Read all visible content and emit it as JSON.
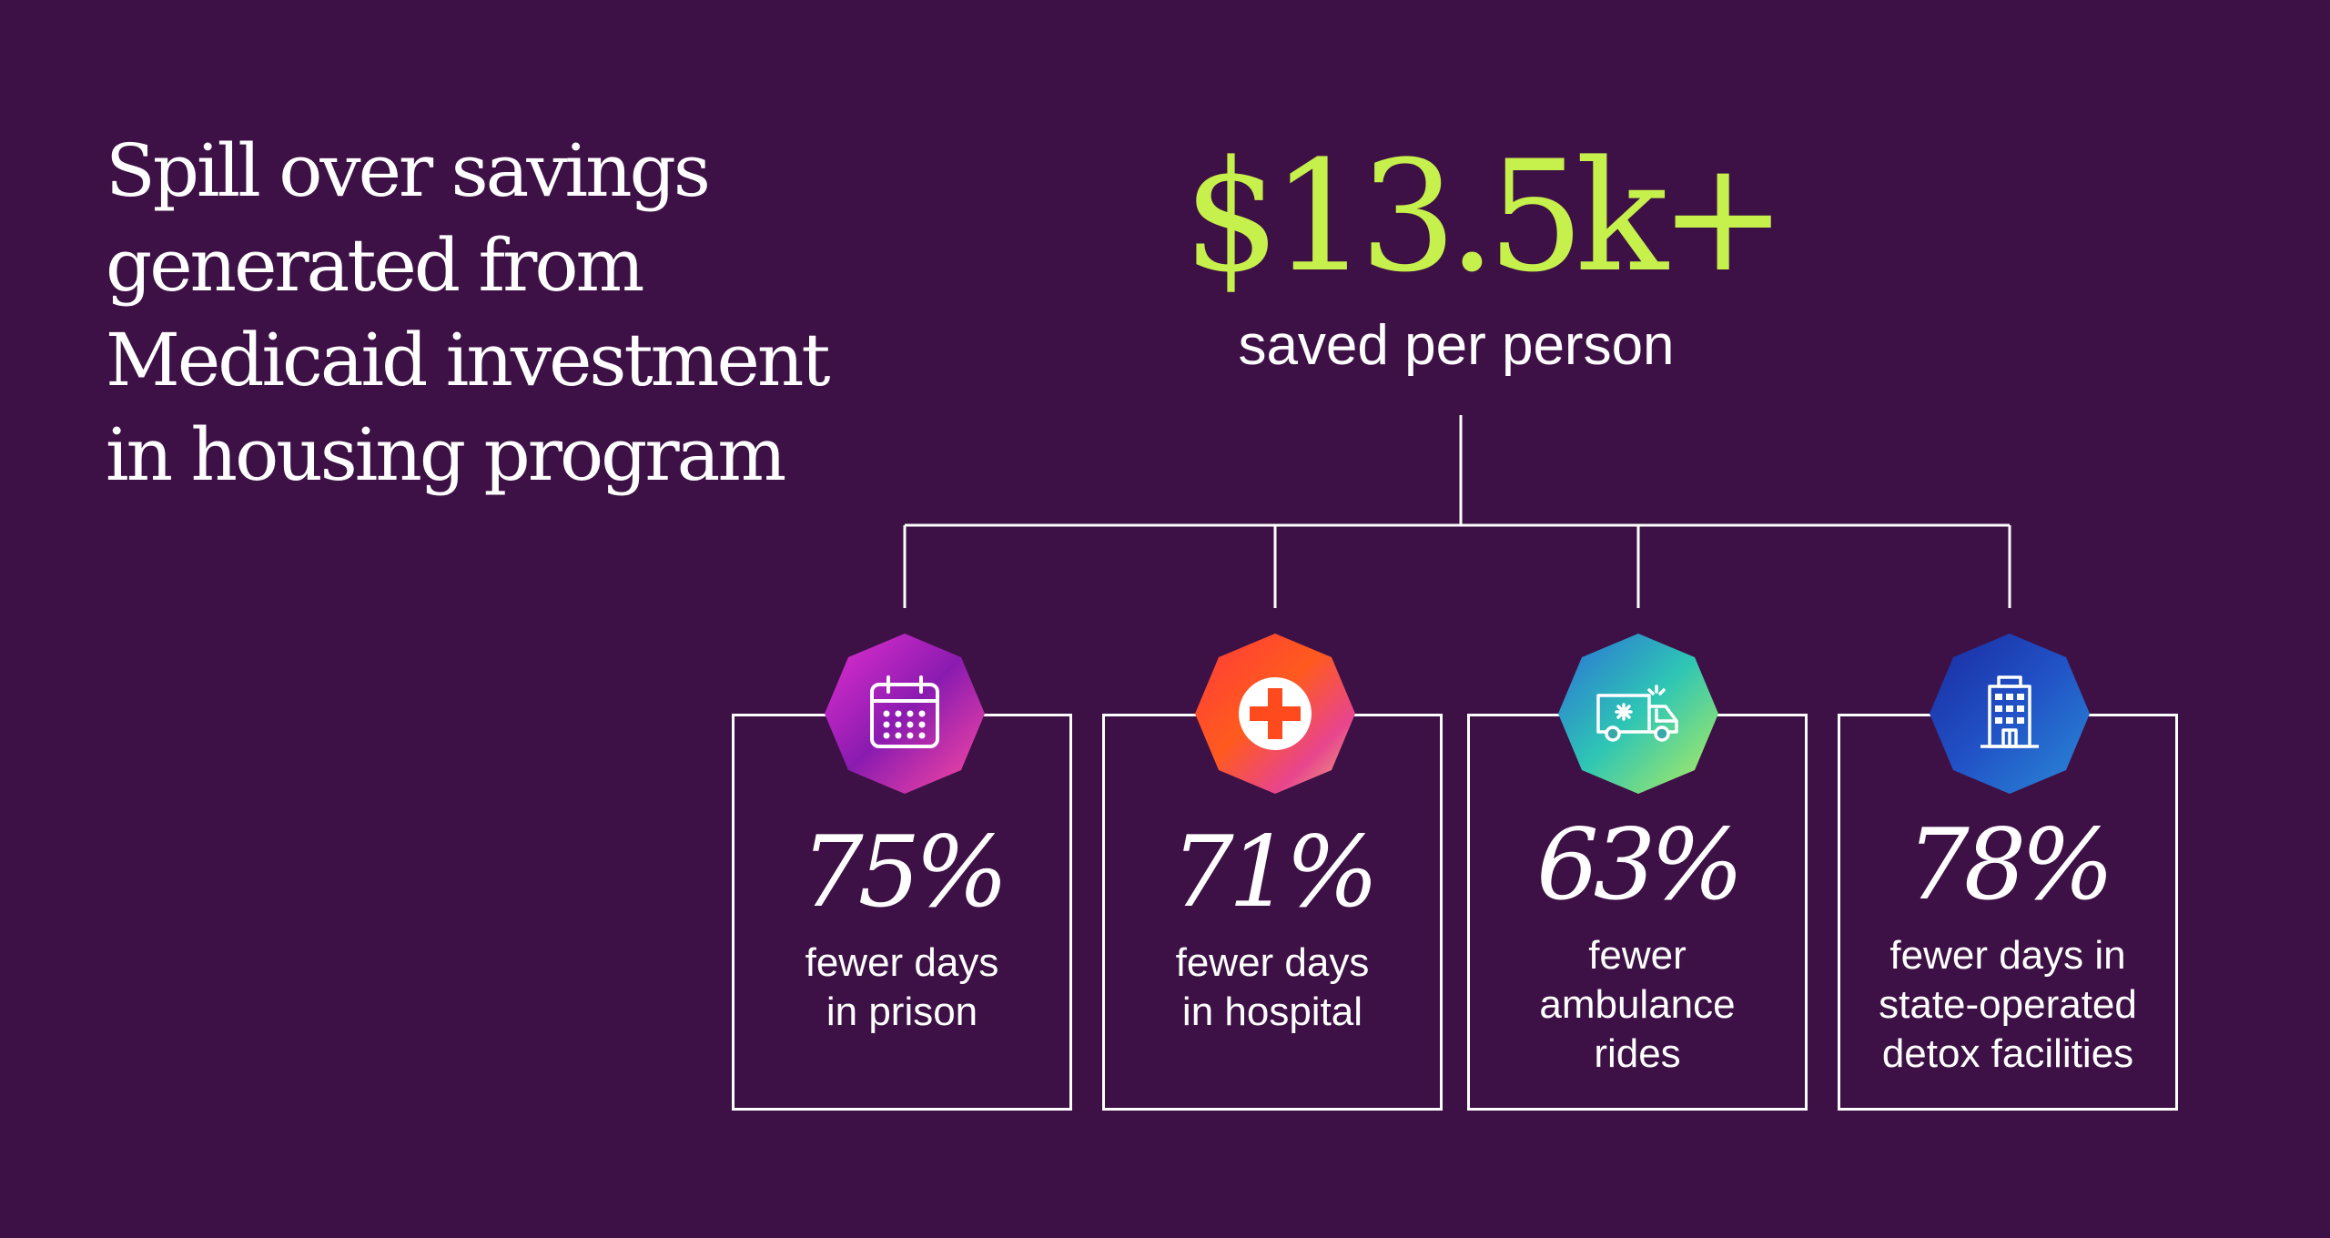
{
  "headline": {
    "lines": [
      "Spill over savings",
      "generated from",
      "Medicaid investment",
      "in housing program"
    ]
  },
  "summary": {
    "value": "$13.5k+",
    "label": "saved per person",
    "accent_color": "#c6f04b"
  },
  "background_color": "#3d1145",
  "stats": [
    {
      "value": "75%",
      "label_lines": [
        "fewer days",
        "in prison"
      ],
      "icon": "calendar-icon"
    },
    {
      "value": "71%",
      "label_lines": [
        "fewer days",
        "in hospital"
      ],
      "icon": "medical-cross-icon"
    },
    {
      "value": "63%",
      "label_lines": [
        "fewer",
        "ambulance",
        "rides"
      ],
      "icon": "ambulance-icon"
    },
    {
      "value": "78%",
      "label_lines": [
        "fewer days in",
        "state-operated",
        "detox facilities"
      ],
      "icon": "building-icon"
    }
  ]
}
